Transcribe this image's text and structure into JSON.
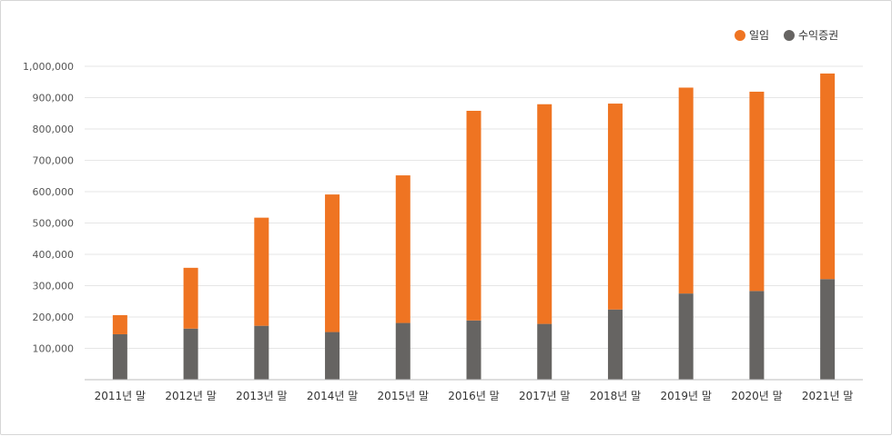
{
  "chart_data": {
    "type": "bar",
    "stacked": true,
    "categories": [
      "2011년 말",
      "2012년 말",
      "2013년 말",
      "2014년 말",
      "2015년 말",
      "2016년 말",
      "2017년 말",
      "2018년 말",
      "2019년 말",
      "2020년 말",
      "2021년 말"
    ],
    "series": [
      {
        "name": "수익증권",
        "color": "#666462",
        "values": [
          145000,
          163000,
          172000,
          152000,
          181000,
          189000,
          178000,
          224000,
          275000,
          283000,
          321000
        ]
      },
      {
        "name": "일임",
        "color": "#ef7422",
        "values": [
          61000,
          194000,
          345000,
          439000,
          471000,
          669000,
          701000,
          657000,
          657000,
          636000,
          656000
        ]
      }
    ],
    "y_ticks": [
      "100,000",
      "200,000",
      "300,000",
      "400,000",
      "500,000",
      "600,000",
      "700,000",
      "800,000",
      "900,000",
      "1,000,000"
    ],
    "y_tick_values": [
      100000,
      200000,
      300000,
      400000,
      500000,
      600000,
      700000,
      800000,
      900000,
      1000000
    ],
    "ylim": [
      0,
      1000000
    ],
    "legend_position": "top-right",
    "grid": true
  },
  "legend": [
    {
      "label": "일임",
      "color": "#ef7422"
    },
    {
      "label": "수익증권",
      "color": "#666462"
    }
  ]
}
